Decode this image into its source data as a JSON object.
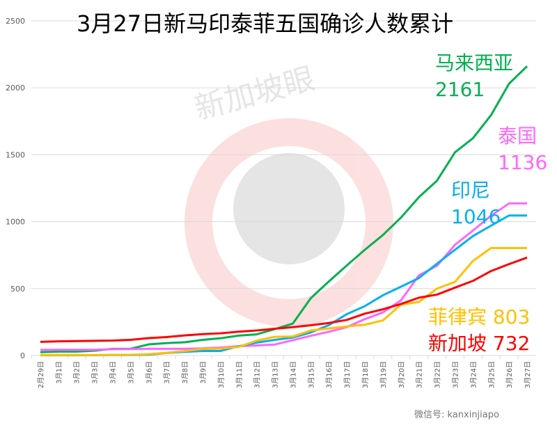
{
  "chart_data": {
    "type": "line",
    "title": "3月27日新马印泰菲五国确诊人数累计",
    "xlabel": "",
    "ylabel": "",
    "ylim": [
      0,
      2500
    ],
    "yticks": [
      0,
      500,
      1000,
      1500,
      2000,
      2500
    ],
    "grid": true,
    "categories": [
      "2月29日",
      "3月1日",
      "3月2日",
      "3月3日",
      "3月4日",
      "3月5日",
      "3月6日",
      "3月7日",
      "3月8日",
      "3月9日",
      "3月10日",
      "3月11日",
      "3月12日",
      "3月13日",
      "3月14日",
      "3月15日",
      "3月16日",
      "3月17日",
      "3月18日",
      "3月19日",
      "3月20日",
      "3月21日",
      "3月22日",
      "3月23日",
      "3月24日",
      "3月25日",
      "3月26日",
      "3月27日"
    ],
    "series": [
      {
        "name": "马来西亚",
        "final_label": "2161",
        "color": "#00b050",
        "values": [
          25,
          29,
          29,
          36,
          50,
          50,
          83,
          93,
          99,
          117,
          129,
          149,
          158,
          197,
          238,
          428,
          553,
          673,
          790,
          900,
          1030,
          1183,
          1306,
          1518,
          1624,
          1796,
          2031,
          2161
        ]
      },
      {
        "name": "泰国",
        "final_label": "1136",
        "color": "#ff66ff",
        "values": [
          42,
          43,
          43,
          43,
          47,
          48,
          50,
          50,
          50,
          53,
          59,
          70,
          75,
          82,
          114,
          147,
          177,
          212,
          272,
          322,
          411,
          599,
          670,
          827,
          934,
          1045,
          1136,
          1136
        ]
      },
      {
        "name": "印尼",
        "final_label": "1046",
        "color": "#00b0f0",
        "values": [
          2,
          2,
          2,
          2,
          4,
          4,
          6,
          19,
          27,
          34,
          34,
          69,
          96,
          117,
          134,
          172,
          227,
          309,
          369,
          450,
          514,
          579,
          686,
          790,
          893,
          970,
          1046,
          1046
        ]
      },
      {
        "name": "菲律宾",
        "final_label": "803",
        "color": "#ffc000",
        "values": [
          3,
          3,
          3,
          3,
          5,
          6,
          10,
          20,
          33,
          49,
          52,
          64,
          111,
          140,
          142,
          187,
          202,
          217,
          230,
          262,
          380,
          400,
          500,
          550,
          707,
          803,
          803,
          803
        ]
      },
      {
        "name": "新加坡",
        "final_label": "732",
        "color": "#ff0000",
        "values": [
          102,
          106,
          108,
          110,
          112,
          117,
          130,
          138,
          150,
          160,
          166,
          178,
          187,
          200,
          212,
          226,
          243,
          266,
          313,
          345,
          385,
          432,
          455,
          507,
          558,
          631,
          683,
          732
        ]
      }
    ]
  },
  "watermark": {
    "brand": "新加坡眼",
    "wechat": "微信号: kanxinjiapo"
  }
}
